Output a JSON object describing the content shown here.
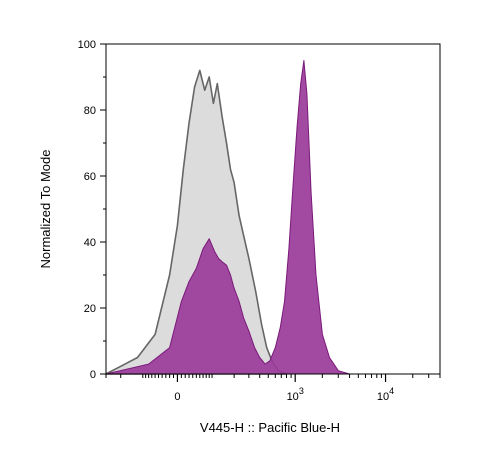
{
  "chart_data": {
    "type": "area",
    "xlabel": "V445-H :: Pacific Blue-H",
    "ylabel": "Normalized To Mode",
    "x_scale": "biexponential",
    "ylim": [
      0,
      100
    ],
    "y_ticks": [
      {
        "value": 0,
        "label": "0"
      },
      {
        "value": 20,
        "label": "20"
      },
      {
        "value": 40,
        "label": "40"
      },
      {
        "value": 60,
        "label": "60"
      },
      {
        "value": 80,
        "label": "80"
      },
      {
        "value": 100,
        "label": "100"
      }
    ],
    "x_ticks": [
      {
        "value": 0,
        "label": "0",
        "exp": ""
      },
      {
        "value": 1000,
        "label": "10",
        "exp": "3"
      },
      {
        "value": 10000,
        "label": "10",
        "exp": "4"
      }
    ],
    "grid": false,
    "legend": "none",
    "series": [
      {
        "color_fill": "#dcdcdc",
        "color_line": "#666666",
        "x": [
          -300,
          -120,
          -60,
          -20,
          0,
          15,
          30,
          45,
          60,
          75,
          90,
          105,
          120,
          140,
          160,
          180,
          200,
          230,
          260,
          300,
          360,
          420,
          480,
          550,
          650,
          800
        ],
        "y": [
          0,
          5,
          12,
          30,
          45,
          62,
          76,
          87,
          92,
          86,
          90,
          82,
          88,
          78,
          70,
          62,
          58,
          48,
          42,
          35,
          25,
          15,
          8,
          4,
          1,
          0
        ]
      },
      {
        "color_fill": "#9a3a9a",
        "color_line": "#7a1a7a",
        "x": [
          -300,
          -80,
          -20,
          10,
          30,
          50,
          70,
          90,
          110,
          125,
          140,
          160,
          180,
          200,
          230,
          260,
          300,
          350,
          400,
          460,
          520,
          600,
          680,
          760,
          850,
          950,
          1050,
          1150,
          1250,
          1350,
          1500,
          1700,
          2000,
          2400,
          3000,
          4000
        ],
        "y": [
          0,
          3,
          8,
          22,
          28,
          32,
          38,
          41,
          37,
          35,
          34,
          33,
          30,
          26,
          22,
          17,
          13,
          8,
          5,
          3,
          4,
          8,
          14,
          22,
          38,
          58,
          75,
          88,
          95,
          85,
          55,
          30,
          12,
          5,
          1,
          0
        ]
      }
    ]
  }
}
